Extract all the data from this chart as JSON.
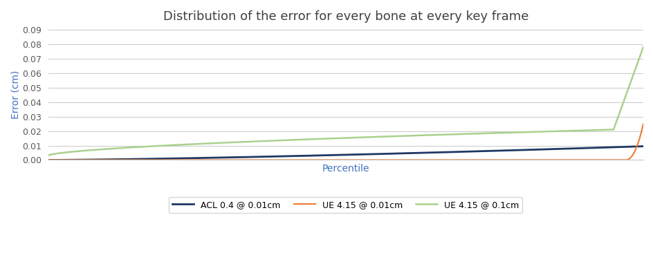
{
  "title": "Distribution of the error for every bone at every key frame",
  "xlabel": "Percentile",
  "ylabel": "Error (cm)",
  "ylim": [
    0,
    0.09
  ],
  "yticks": [
    0,
    0.01,
    0.02,
    0.03,
    0.04,
    0.05,
    0.06,
    0.07,
    0.08,
    0.09
  ],
  "title_color": "#404040",
  "axis_label_color": "#4472C4",
  "tick_label_color": "#595959",
  "background_color": "#FFFFFF",
  "plot_bg_color": "#FFFFFF",
  "grid_color": "#C8C8C8",
  "lines": [
    {
      "label": "ACL 0.4 @ 0.01cm",
      "color": "#1F3864",
      "linewidth": 2.0,
      "curve": "acl"
    },
    {
      "label": "UE 4.15 @ 0.01cm",
      "color": "#ED7D31",
      "linewidth": 1.5,
      "curve": "ue_001"
    },
    {
      "label": "UE 4.15 @ 0.1cm",
      "color": "#A9D18E",
      "linewidth": 1.8,
      "curve": "ue_01"
    }
  ],
  "legend_ncol": 3,
  "figsize": [
    9.45,
    3.79
  ],
  "dpi": 100
}
